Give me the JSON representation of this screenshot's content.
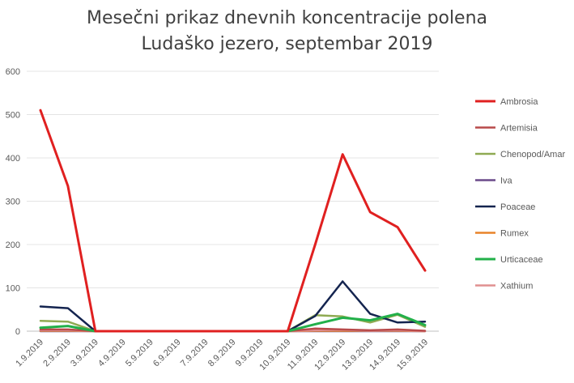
{
  "chart_data": {
    "type": "line",
    "title": "Mesečni prikaz dnevnih koncentracije polena",
    "subtitle": "Ludaško jezero, septembar 2019",
    "xlabel": "",
    "ylabel": "",
    "ylim": [
      0,
      600
    ],
    "yticks": [
      0,
      100,
      200,
      300,
      400,
      500,
      600
    ],
    "grid": true,
    "legend_position": "right",
    "categories": [
      "1.9.2019",
      "2.9.2019",
      "3.9.2019",
      "4.9.2019",
      "5.9.2019",
      "6.9.2019",
      "7.9.2019",
      "8.9.2019",
      "9.9.2019",
      "10.9.2019",
      "11.9.2019",
      "12.9.2019",
      "13.9.2019",
      "14.9.2019",
      "15.9.2019"
    ],
    "series": [
      {
        "name": "Ambrosia",
        "color": "#e02020",
        "width": 3,
        "values": [
          510,
          335,
          0,
          0,
          0,
          0,
          0,
          0,
          0,
          0,
          200,
          408,
          275,
          240,
          140
        ]
      },
      {
        "name": "Artemisia",
        "color": "#b84a4a",
        "width": 2.5,
        "values": [
          4,
          4,
          0,
          0,
          0,
          0,
          0,
          0,
          0,
          0,
          6,
          4,
          2,
          4,
          1
        ]
      },
      {
        "name": "Chenopod/Amar",
        "color": "#8faa52",
        "width": 2.5,
        "values": [
          24,
          22,
          0,
          0,
          0,
          0,
          0,
          0,
          0,
          0,
          37,
          34,
          20,
          38,
          10
        ]
      },
      {
        "name": "Iva",
        "color": "#6b4a8a",
        "width": 2.5,
        "values": [
          0,
          0,
          0,
          0,
          0,
          0,
          0,
          0,
          0,
          0,
          0,
          0,
          0,
          0,
          0
        ]
      },
      {
        "name": "Poaceae",
        "color": "#14244f",
        "width": 2.5,
        "values": [
          57,
          53,
          0,
          0,
          0,
          0,
          0,
          0,
          0,
          0,
          35,
          115,
          40,
          20,
          22
        ]
      },
      {
        "name": "Rumex",
        "color": "#e8832a",
        "width": 2.5,
        "values": [
          1,
          1,
          0,
          0,
          0,
          0,
          0,
          0,
          0,
          0,
          1,
          1,
          1,
          1,
          0
        ]
      },
      {
        "name": "Urticaceae",
        "color": "#22b04a",
        "width": 3,
        "values": [
          8,
          12,
          0,
          0,
          0,
          0,
          0,
          0,
          0,
          0,
          16,
          31,
          25,
          40,
          14
        ]
      },
      {
        "name": "Xathium",
        "color": "#e09090",
        "width": 2.5,
        "values": [
          2,
          2,
          0,
          0,
          0,
          0,
          0,
          0,
          0,
          0,
          2,
          3,
          1,
          2,
          0
        ]
      }
    ]
  }
}
